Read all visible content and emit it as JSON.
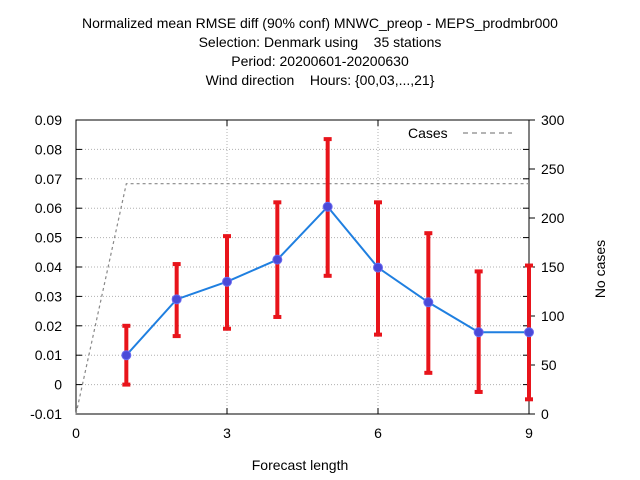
{
  "title_lines": [
    "Normalized mean RMSE diff (90% conf) MNWC_preop - MEPS_prodmbr000",
    "Selection: Denmark using    35 stations",
    "Period: 20200601-20200630",
    "Wind direction    Hours: {00,03,...,21}"
  ],
  "colors": {
    "line": "#1f7fe0",
    "marker": "#4a4ad8",
    "errorbar": "#e8141b",
    "cases": "#888888",
    "grid": "#b0b0b0"
  },
  "chart_data": {
    "type": "line",
    "xlabel": "Forecast length",
    "ylabel_right": "No cases",
    "xlim": [
      0,
      9
    ],
    "ylim": [
      -0.01,
      0.09
    ],
    "y2lim": [
      0,
      300
    ],
    "xticks": [
      "0",
      "3",
      "6",
      "9"
    ],
    "yticks": [
      "-0.01",
      "0",
      "0.01",
      "0.02",
      "0.03",
      "0.04",
      "0.05",
      "0.06",
      "0.07",
      "0.08",
      "0.09"
    ],
    "y2ticks": [
      "0",
      "50",
      "100",
      "150",
      "200",
      "250",
      "300"
    ],
    "grid": true,
    "legend": {
      "placement": "top-right",
      "entries": [
        "Cases"
      ]
    },
    "series": [
      {
        "x": [
          1,
          2,
          3,
          4,
          5,
          6,
          7,
          8,
          9
        ],
        "values": [
          0.01,
          0.029,
          0.035,
          0.0425,
          0.0605,
          0.0398,
          0.028,
          0.0178,
          0.0178
        ],
        "err_low": [
          0.0,
          0.0165,
          0.019,
          0.023,
          0.037,
          0.017,
          0.004,
          -0.0025,
          -0.005
        ],
        "err_high": [
          0.02,
          0.041,
          0.0505,
          0.062,
          0.0835,
          0.062,
          0.0515,
          0.0385,
          0.0405
        ]
      },
      {
        "name": "Cases",
        "axis": "right",
        "x": [
          0,
          1,
          2,
          3,
          4,
          5,
          6,
          7,
          8,
          9
        ],
        "values": [
          0,
          235,
          235,
          235,
          235,
          235,
          235,
          235,
          235,
          235
        ]
      }
    ]
  }
}
